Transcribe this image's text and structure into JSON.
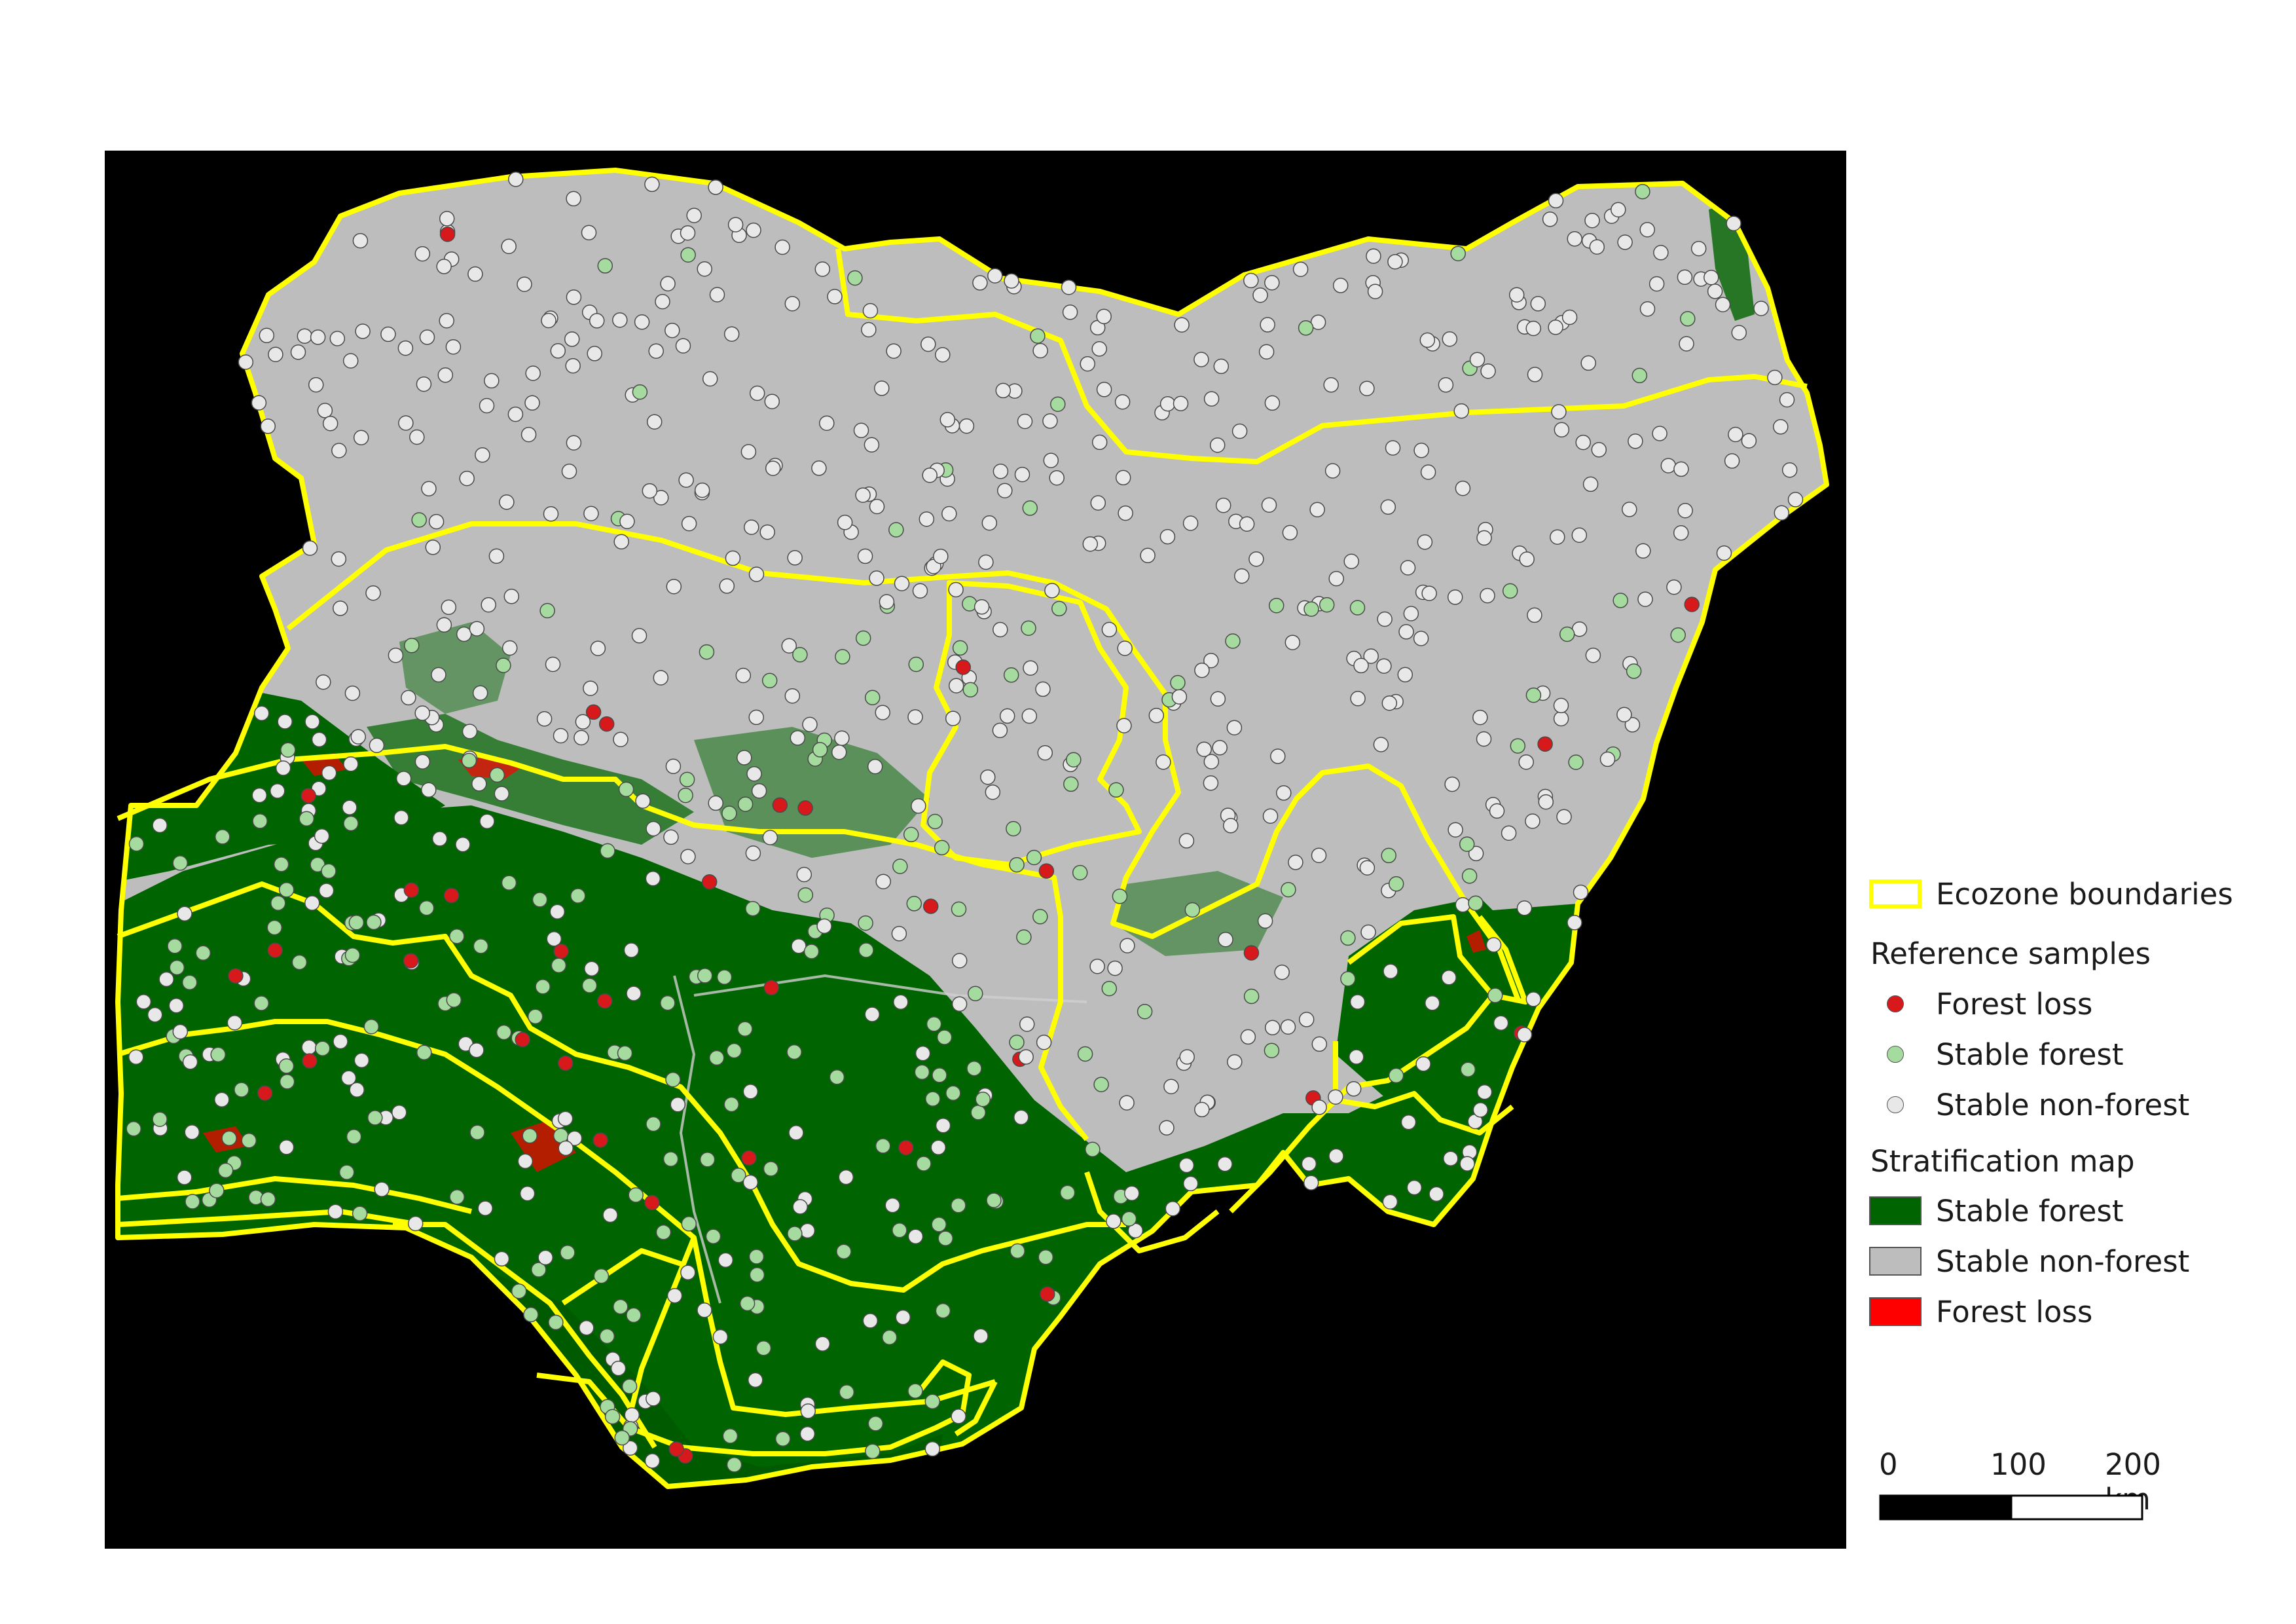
{
  "legend": {
    "ecozone_label": "Ecozone boundaries",
    "reference_heading": "Reference samples",
    "reference_items": [
      {
        "label": "Forest loss",
        "color": "#d7191c"
      },
      {
        "label": "Stable forest",
        "color": "#a6dba0"
      },
      {
        "label": "Stable non-forest",
        "color": "#e8e8e8"
      }
    ],
    "strat_heading": "Stratification map",
    "strat_items": [
      {
        "label": "Stable forest",
        "color": "#006400"
      },
      {
        "label": "Stable non-forest",
        "color": "#bdbdbd"
      },
      {
        "label": "Forest loss",
        "color": "#ff0000"
      }
    ]
  },
  "scalebar": {
    "tick0": "0",
    "tick1": "100",
    "tick2": "200 km"
  },
  "colors": {
    "background": "#000000",
    "boundary": "#ffff00",
    "forest": "#006400",
    "nonforest": "#bdbdbd",
    "loss": "#ff0000"
  }
}
